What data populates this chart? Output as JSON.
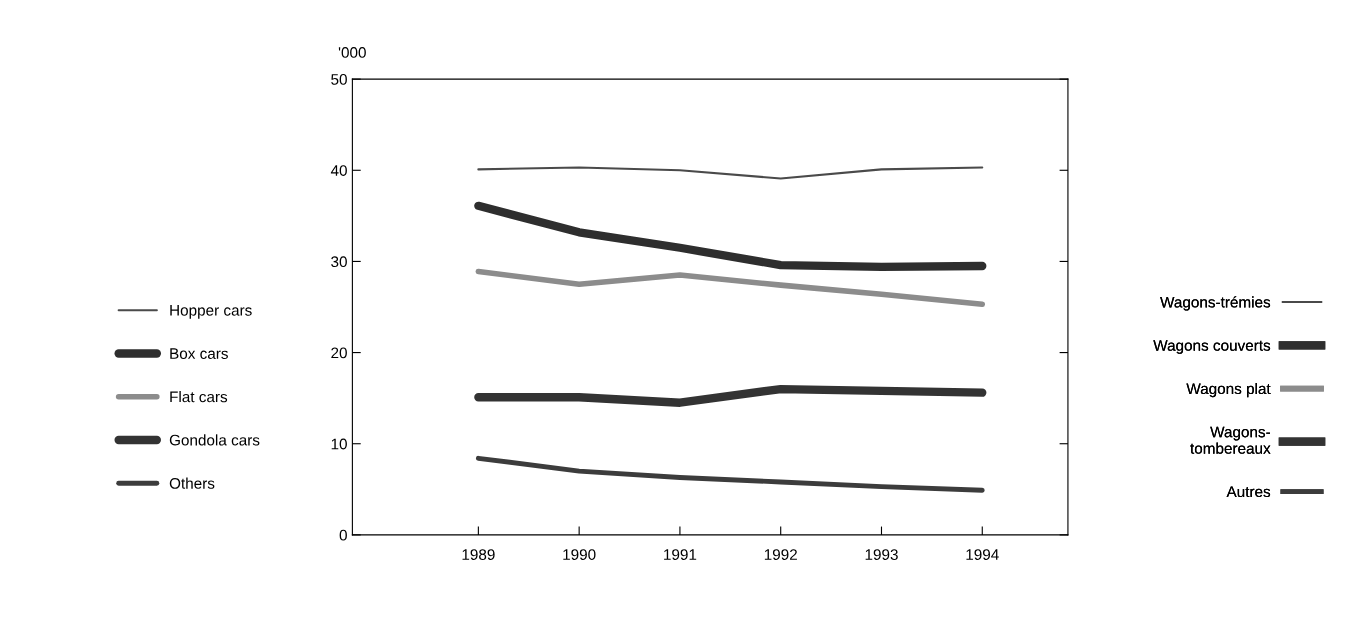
{
  "chart_data": {
    "type": "line",
    "ylabel": "'000",
    "x": [
      1989,
      1990,
      1991,
      1992,
      1993,
      1994
    ],
    "xlim": [
      1987.75,
      1994.85
    ],
    "xticks": [
      1989,
      1990,
      1991,
      1992,
      1993,
      1994
    ],
    "ylim": [
      0,
      50
    ],
    "yticks": [
      0,
      10,
      20,
      30,
      40,
      50
    ],
    "grid": false,
    "legend": "left",
    "marker": "none",
    "line_style": "solid",
    "series": [
      {
        "name": "Hopper cars",
        "color": "#4a4a4a",
        "values": [
          40.1,
          40.3,
          40.0,
          39.1,
          40.1,
          40.3
        ]
      },
      {
        "name": "Box cars",
        "color": "#2e2e2e",
        "values": [
          36.1,
          33.2,
          31.5,
          29.6,
          29.4,
          29.5
        ]
      },
      {
        "name": "Flat cars",
        "color": "#8c8c8c",
        "values": [
          28.9,
          27.5,
          28.5,
          27.4,
          26.4,
          25.3
        ]
      },
      {
        "name": "Gondola cars",
        "color": "#333333",
        "values": [
          15.1,
          15.1,
          14.5,
          16.0,
          15.8,
          15.6
        ]
      },
      {
        "name": "Others",
        "color": "#3c3c3c",
        "values": [
          8.4,
          7.0,
          6.3,
          5.8,
          5.3,
          4.9
        ]
      }
    ],
    "annotations": [
      "Wagons-trémies",
      "Wagons couverts",
      "Wagons plat",
      "Wagons-\ntombereaux",
      "Autres"
    ]
  }
}
